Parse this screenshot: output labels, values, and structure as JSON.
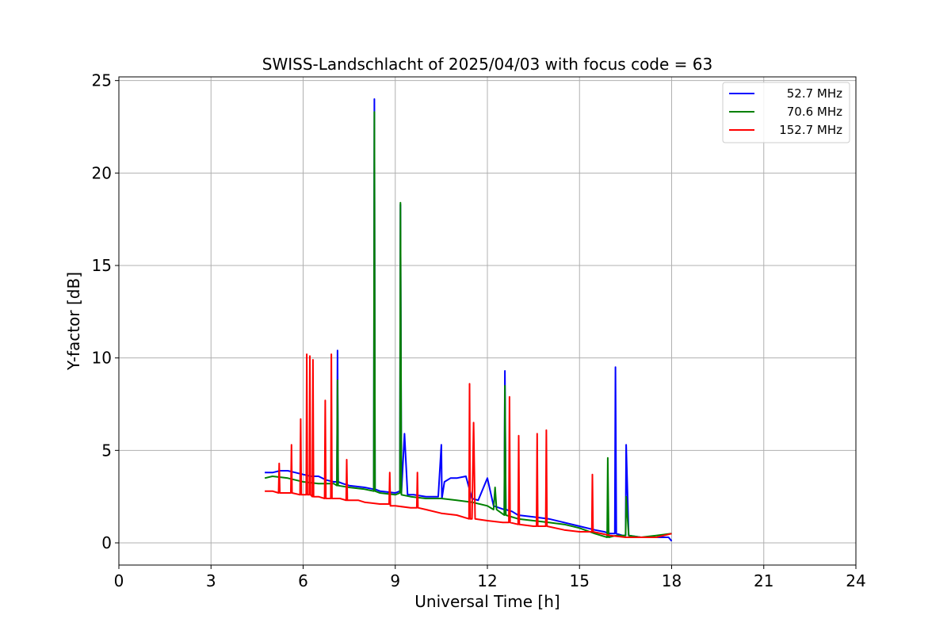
{
  "chart_data": {
    "type": "line",
    "title": "SWISS-Landschlacht of 2025/04/03 with focus code = 63",
    "xlabel": "Universal Time [h]",
    "ylabel": "Y-factor [dB]",
    "xlim": [
      0,
      24
    ],
    "ylim": [
      -1.2,
      25.2
    ],
    "xticks": [
      "0",
      "3",
      "6",
      "9",
      "12",
      "15",
      "18",
      "21",
      "24"
    ],
    "yticks": [
      "0",
      "5",
      "10",
      "15",
      "20",
      "25"
    ],
    "grid": true,
    "legend_position": "top-right",
    "series": [
      {
        "name": "52.7 MHz",
        "color": "#0000ff",
        "x": [
          4.75,
          5.0,
          5.25,
          5.5,
          5.75,
          6.0,
          6.25,
          6.5,
          6.75,
          7.0,
          7.1,
          7.12,
          7.14,
          7.3,
          7.5,
          8.0,
          8.3,
          8.32,
          8.34,
          8.5,
          9.0,
          9.15,
          9.17,
          9.2,
          9.3,
          9.4,
          9.6,
          10.0,
          10.4,
          10.5,
          10.52,
          10.6,
          10.8,
          11.0,
          11.3,
          11.5,
          11.7,
          12.0,
          12.2,
          12.55,
          12.57,
          12.6,
          12.8,
          13.0,
          13.5,
          14.0,
          14.5,
          15.0,
          15.5,
          15.8,
          16.0,
          16.15,
          16.17,
          16.2,
          16.4,
          16.5,
          16.52,
          16.6,
          17.0,
          17.5,
          17.9,
          18.0
        ],
        "values": [
          3.8,
          3.8,
          3.9,
          3.9,
          3.8,
          3.7,
          3.6,
          3.6,
          3.4,
          3.3,
          3.3,
          10.4,
          3.3,
          3.2,
          3.1,
          3.0,
          2.9,
          24.0,
          2.9,
          2.8,
          2.7,
          2.8,
          18.3,
          2.7,
          5.9,
          2.6,
          2.6,
          2.5,
          2.5,
          5.3,
          2.4,
          3.3,
          3.5,
          3.5,
          3.6,
          2.4,
          2.3,
          3.5,
          2.0,
          1.8,
          9.3,
          1.8,
          1.7,
          1.5,
          1.4,
          1.3,
          1.1,
          0.9,
          0.7,
          0.6,
          0.5,
          0.5,
          9.5,
          0.5,
          0.4,
          0.4,
          5.3,
          0.4,
          0.3,
          0.3,
          0.3,
          0.1
        ]
      },
      {
        "name": "70.6 MHz",
        "color": "#008000",
        "x": [
          4.75,
          5.0,
          5.5,
          6.0,
          6.5,
          7.0,
          7.1,
          7.12,
          7.14,
          7.5,
          8.0,
          8.3,
          8.32,
          8.34,
          8.5,
          9.0,
          9.15,
          9.17,
          9.2,
          9.5,
          10.0,
          10.5,
          11.0,
          11.5,
          12.0,
          12.2,
          12.25,
          12.3,
          12.55,
          12.57,
          12.6,
          13.0,
          13.5,
          14.0,
          14.5,
          15.0,
          15.5,
          15.9,
          15.92,
          15.95,
          16.2,
          16.5,
          16.52,
          16.6,
          17.0,
          17.5,
          18.0
        ],
        "values": [
          3.5,
          3.6,
          3.5,
          3.3,
          3.2,
          3.2,
          3.1,
          8.8,
          3.1,
          3.0,
          2.9,
          2.8,
          23.3,
          2.8,
          2.7,
          2.6,
          2.7,
          18.4,
          2.6,
          2.5,
          2.4,
          2.4,
          2.3,
          2.2,
          2.0,
          1.8,
          3.0,
          1.8,
          1.5,
          8.5,
          1.5,
          1.3,
          1.2,
          1.1,
          1.0,
          0.8,
          0.5,
          0.3,
          4.6,
          0.3,
          0.4,
          0.4,
          2.5,
          0.4,
          0.3,
          0.4,
          0.5
        ]
      },
      {
        "name": "152.7 MHz",
        "color": "#ff0000",
        "x": [
          4.75,
          5.0,
          5.2,
          5.22,
          5.24,
          5.5,
          5.6,
          5.62,
          5.64,
          5.9,
          5.92,
          5.94,
          6.1,
          6.12,
          6.14,
          6.2,
          6.22,
          6.24,
          6.3,
          6.32,
          6.34,
          6.5,
          6.7,
          6.72,
          6.74,
          6.9,
          6.92,
          6.94,
          7.2,
          7.4,
          7.42,
          7.44,
          7.8,
          8.0,
          8.5,
          8.8,
          8.82,
          8.84,
          9.0,
          9.5,
          9.7,
          9.72,
          9.74,
          10.0,
          10.5,
          11.0,
          11.4,
          11.42,
          11.44,
          11.5,
          11.55,
          11.6,
          12.0,
          12.5,
          12.7,
          12.72,
          12.74,
          13.0,
          13.02,
          13.04,
          13.5,
          13.6,
          13.62,
          13.64,
          13.9,
          13.92,
          13.94,
          14.5,
          15.0,
          15.4,
          15.42,
          15.44,
          16.0,
          16.5,
          17.0,
          17.5,
          18.0
        ],
        "values": [
          2.8,
          2.8,
          2.7,
          4.3,
          2.7,
          2.7,
          2.7,
          5.3,
          2.7,
          2.6,
          6.7,
          2.6,
          2.6,
          10.2,
          2.6,
          2.6,
          10.1,
          2.6,
          2.5,
          9.9,
          2.5,
          2.5,
          2.4,
          7.7,
          2.4,
          2.4,
          10.2,
          2.4,
          2.4,
          2.3,
          4.5,
          2.3,
          2.3,
          2.2,
          2.1,
          2.1,
          3.8,
          2.0,
          2.0,
          1.9,
          1.9,
          3.8,
          1.9,
          1.8,
          1.6,
          1.5,
          1.3,
          8.6,
          1.3,
          1.3,
          6.5,
          1.3,
          1.2,
          1.1,
          1.1,
          7.9,
          1.1,
          1.0,
          5.8,
          1.0,
          0.9,
          0.9,
          5.9,
          0.9,
          0.9,
          6.1,
          0.9,
          0.7,
          0.6,
          0.6,
          3.7,
          0.6,
          0.4,
          0.3,
          0.3,
          0.3,
          0.5
        ]
      }
    ]
  }
}
